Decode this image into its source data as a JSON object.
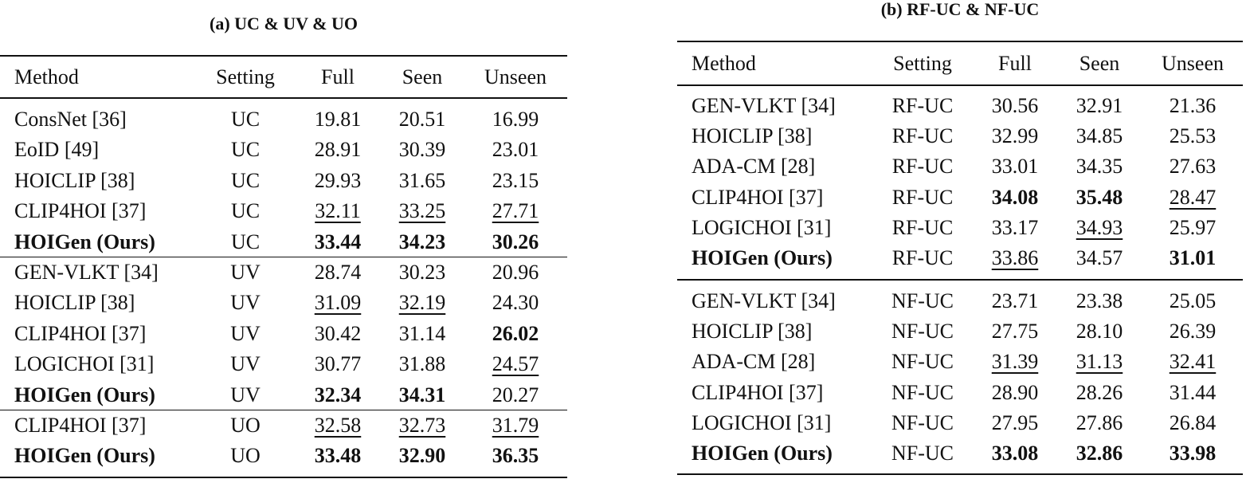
{
  "tables": [
    {
      "title": "(a) UC & UV & UO",
      "header": [
        "Method",
        "Setting",
        "Full",
        "Seen",
        "Unseen"
      ],
      "groups": [
        [
          [
            "ConsNet [36]",
            "UC",
            "19.81",
            "20.51",
            "16.99"
          ],
          [
            "EoID [49]",
            "UC",
            "28.91",
            "30.39",
            "23.01"
          ],
          [
            "HOICLIP [38]",
            "UC",
            "29.93",
            "31.65",
            "23.15"
          ],
          [
            "CLIP4HOI [37]",
            "UC",
            "32.11",
            "33.25",
            "27.71"
          ],
          [
            "HOIGen (Ours)",
            "UC",
            "33.44",
            "34.23",
            "30.26"
          ]
        ],
        [
          [
            "GEN-VLKT [34]",
            "UV",
            "28.74",
            "30.23",
            "20.96"
          ],
          [
            "HOICLIP [38]",
            "UV",
            "31.09",
            "32.19",
            "24.30"
          ],
          [
            "CLIP4HOI [37]",
            "UV",
            "30.42",
            "31.14",
            "26.02"
          ],
          [
            "LOGICHOI [31]",
            "UV",
            "30.77",
            "31.88",
            "24.57"
          ],
          [
            "HOIGen (Ours)",
            "UV",
            "32.34",
            "34.31",
            "20.27"
          ]
        ],
        [
          [
            "CLIP4HOI [37]",
            "UO",
            "32.58",
            "32.73",
            "31.79"
          ],
          [
            "HOIGen (Ours)",
            "UO",
            "33.48",
            "32.90",
            "36.35"
          ]
        ]
      ],
      "bold": [
        [
          0,
          4,
          0
        ],
        [
          0,
          4,
          2
        ],
        [
          0,
          4,
          3
        ],
        [
          0,
          4,
          4
        ],
        [
          1,
          2,
          4
        ],
        [
          1,
          4,
          0
        ],
        [
          1,
          4,
          2
        ],
        [
          1,
          4,
          3
        ],
        [
          2,
          1,
          0
        ],
        [
          2,
          1,
          2
        ],
        [
          2,
          1,
          3
        ],
        [
          2,
          1,
          4
        ]
      ],
      "underline": [
        [
          0,
          3,
          2
        ],
        [
          0,
          3,
          3
        ],
        [
          0,
          3,
          4
        ],
        [
          1,
          1,
          2
        ],
        [
          1,
          1,
          3
        ],
        [
          1,
          3,
          4
        ],
        [
          2,
          0,
          2
        ],
        [
          2,
          0,
          3
        ],
        [
          2,
          0,
          4
        ]
      ]
    },
    {
      "title": "(b) RF-UC & NF-UC",
      "header": [
        "Method",
        "Setting",
        "Full",
        "Seen",
        "Unseen"
      ],
      "groups": [
        [
          [
            "GEN-VLKT [34]",
            "RF-UC",
            "30.56",
            "32.91",
            "21.36"
          ],
          [
            "HOICLIP [38]",
            "RF-UC",
            "32.99",
            "34.85",
            "25.53"
          ],
          [
            "ADA-CM [28]",
            "RF-UC",
            "33.01",
            "34.35",
            "27.63"
          ],
          [
            "CLIP4HOI [37]",
            "RF-UC",
            "34.08",
            "35.48",
            "28.47"
          ],
          [
            "LOGICHOI [31]",
            "RF-UC",
            "33.17",
            "34.93",
            "25.97"
          ],
          [
            "HOIGen (Ours)",
            "RF-UC",
            "33.86",
            "34.57",
            "31.01"
          ]
        ],
        [
          [
            "GEN-VLKT [34]",
            "NF-UC",
            "23.71",
            "23.38",
            "25.05"
          ],
          [
            "HOICLIP [38]",
            "NF-UC",
            "27.75",
            "28.10",
            "26.39"
          ],
          [
            "ADA-CM [28]",
            "NF-UC",
            "31.39",
            "31.13",
            "32.41"
          ],
          [
            "CLIP4HOI [37]",
            "NF-UC",
            "28.90",
            "28.26",
            "31.44"
          ],
          [
            "LOGICHOI [31]",
            "NF-UC",
            "27.95",
            "27.86",
            "26.84"
          ],
          [
            "HOIGen (Ours)",
            "NF-UC",
            "33.08",
            "32.86",
            "33.98"
          ]
        ]
      ],
      "bold": [
        [
          0,
          3,
          2
        ],
        [
          0,
          3,
          3
        ],
        [
          0,
          5,
          0
        ],
        [
          0,
          5,
          4
        ],
        [
          1,
          5,
          0
        ],
        [
          1,
          5,
          2
        ],
        [
          1,
          5,
          3
        ],
        [
          1,
          5,
          4
        ]
      ],
      "underline": [
        [
          0,
          3,
          4
        ],
        [
          0,
          4,
          3
        ],
        [
          0,
          5,
          2
        ],
        [
          1,
          2,
          2
        ],
        [
          1,
          2,
          3
        ],
        [
          1,
          2,
          4
        ]
      ]
    }
  ]
}
